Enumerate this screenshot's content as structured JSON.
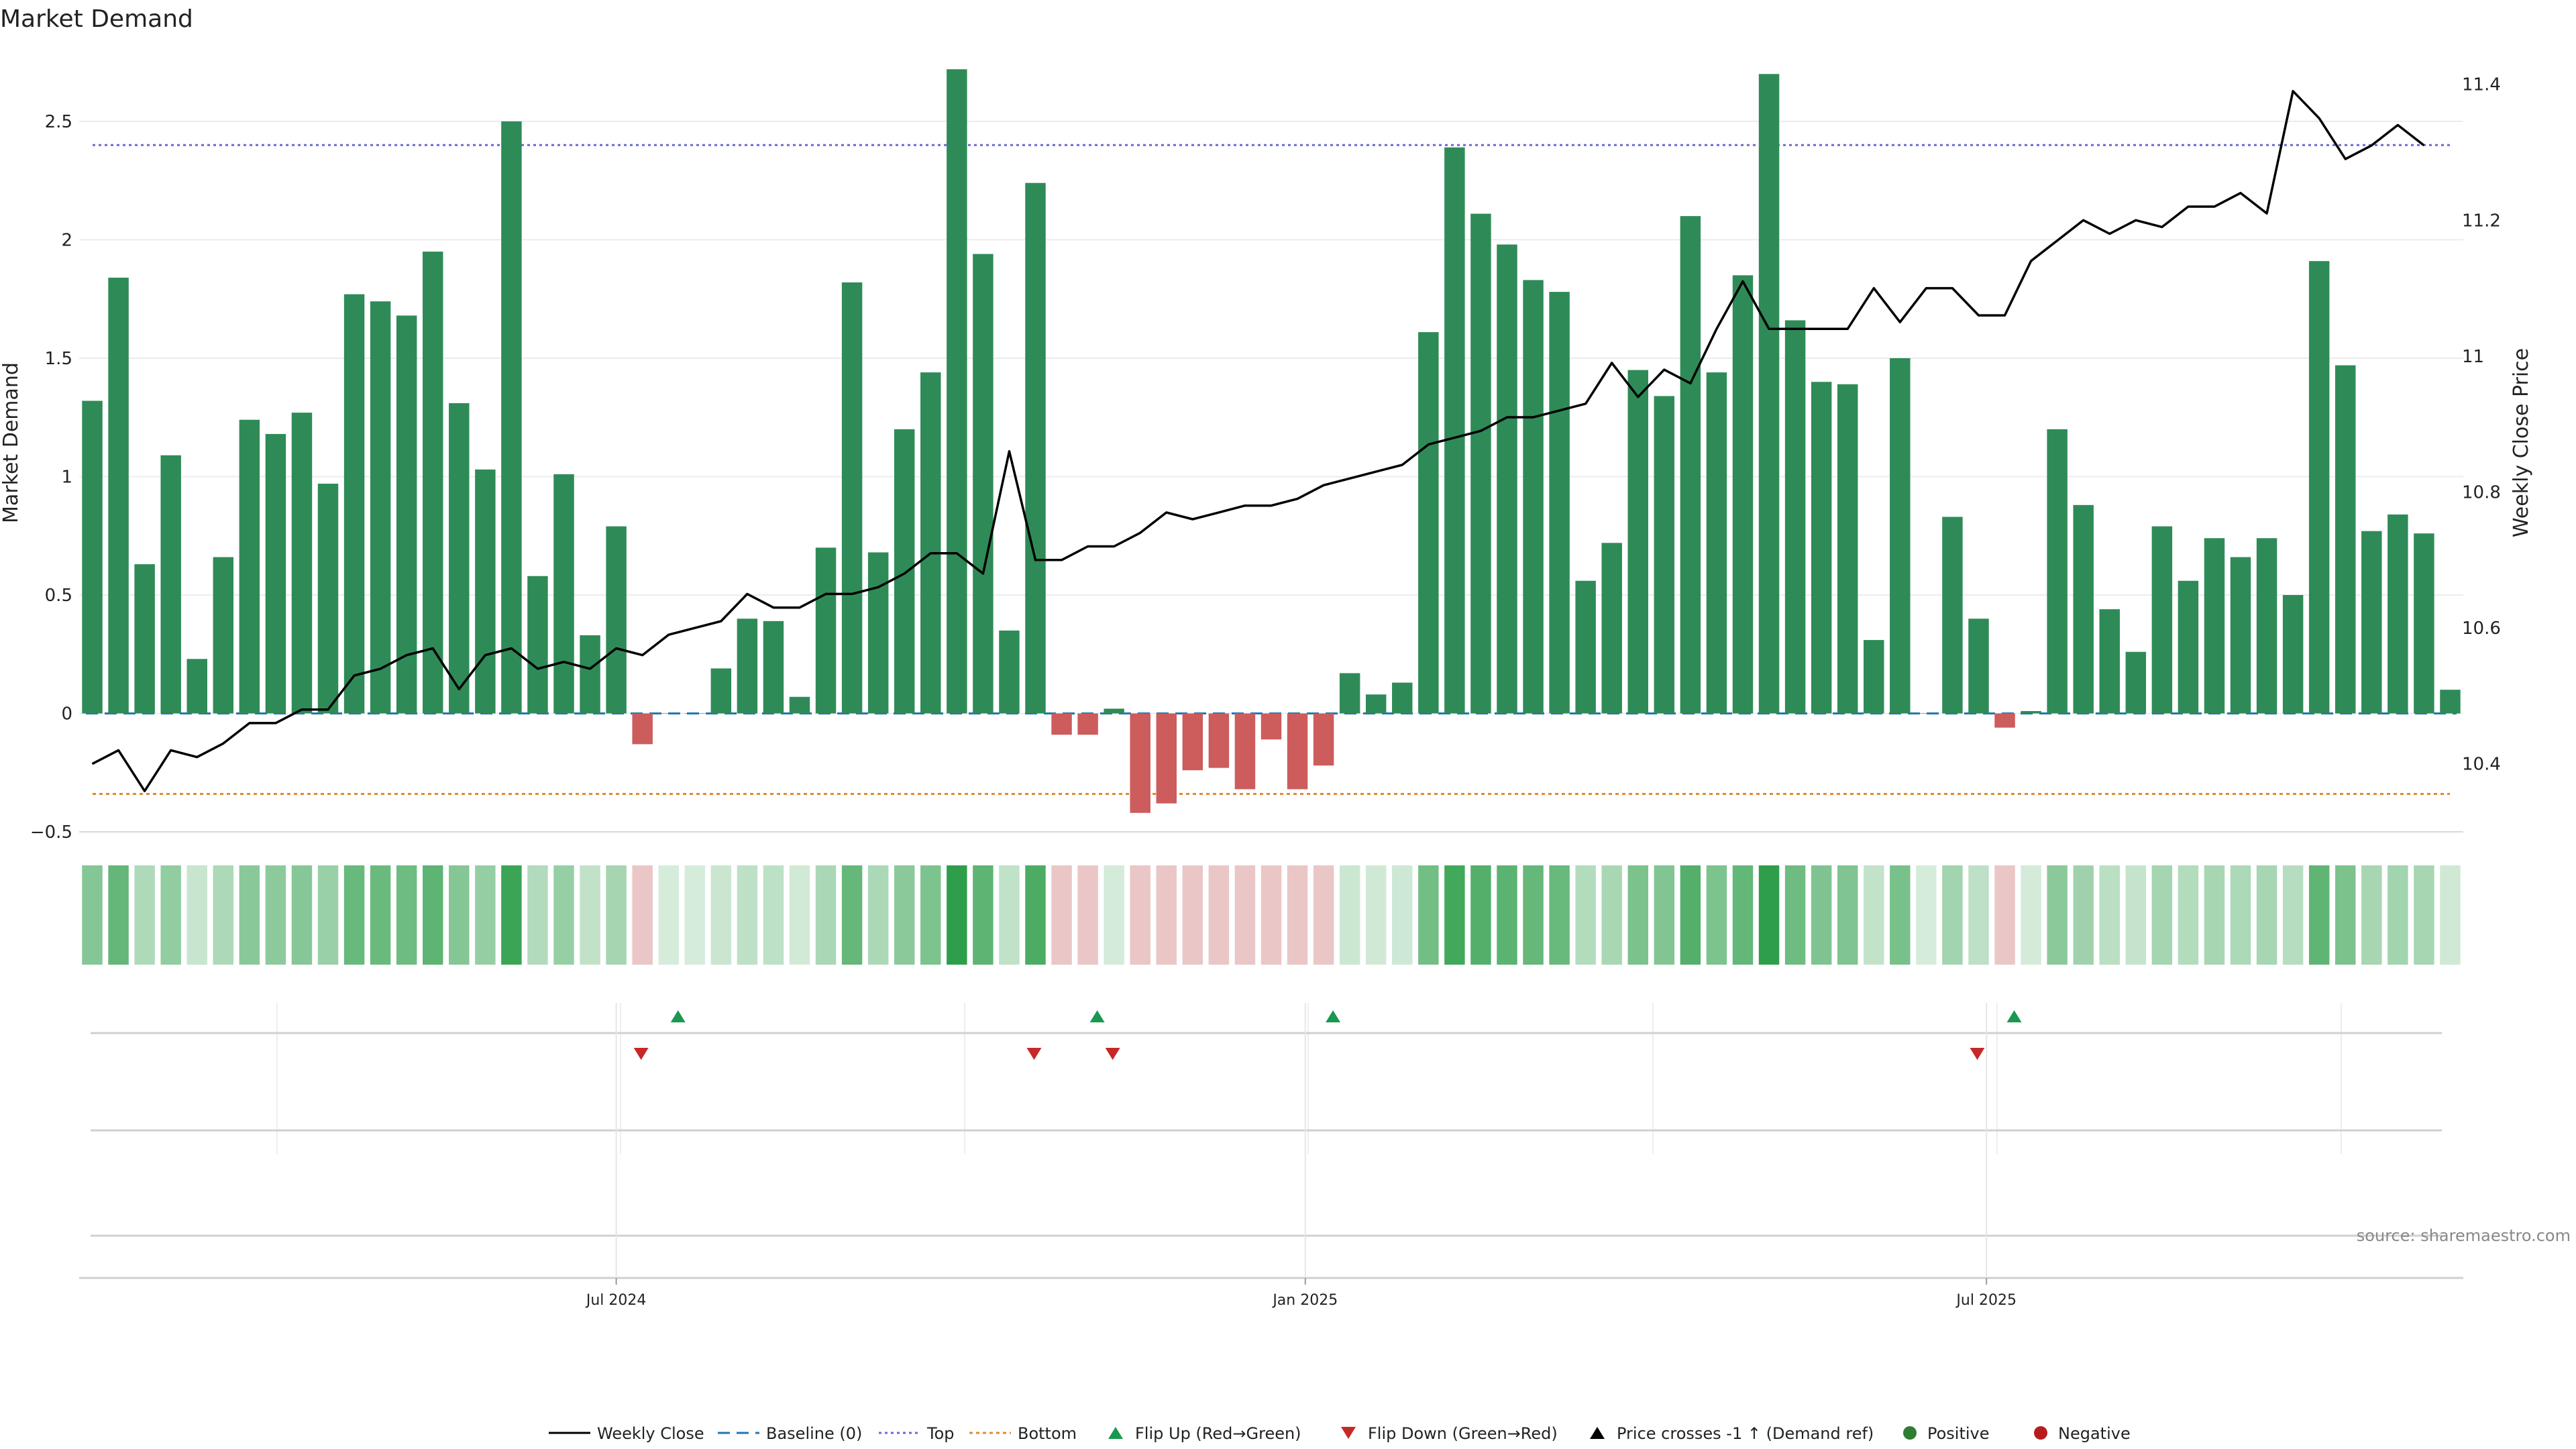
{
  "chart_data": {
    "type": "bar",
    "title": "Market Demand",
    "ylabel_left": "Market Demand",
    "ylabel_right": "Weekly Close Price",
    "ylim_left": [
      -0.5,
      2.8
    ],
    "ylim_right": [
      10.3,
      11.45
    ],
    "y_ticks_left": [
      -0.5,
      0,
      0.5,
      1,
      1.5,
      2,
      2.5
    ],
    "y_tick_labels_left": [
      "−0.5",
      "0",
      "0.5",
      "1",
      "1.5",
      "2",
      "2.5"
    ],
    "y_ticks_right": [
      10.4,
      10.6,
      10.8,
      11,
      11.2,
      11.4
    ],
    "y_tick_labels_right": [
      "10.4",
      "10.6",
      "10.8",
      "11",
      "11.2",
      "11.4"
    ],
    "x_tick_labels": [
      "Jul 2024",
      "Jan 2025",
      "Jul 2025"
    ],
    "x_tick_positions": [
      20.5,
      46.8,
      72.8
    ],
    "top_line": 2.4,
    "bottom_line": -0.34,
    "grid": true,
    "demand": [
      1.32,
      1.84,
      0.63,
      1.09,
      0.23,
      0.66,
      1.24,
      1.18,
      1.27,
      0.97,
      1.77,
      1.74,
      1.68,
      1.95,
      1.31,
      1.03,
      2.5,
      0.58,
      1.01,
      0.33,
      0.79,
      -0.13,
      0.0,
      0.0,
      0.19,
      0.4,
      0.39,
      0.07,
      0.7,
      1.82,
      0.68,
      1.2,
      1.44,
      2.72,
      1.94,
      0.35,
      2.24,
      -0.09,
      -0.09,
      0.02,
      -0.42,
      -0.38,
      -0.24,
      -0.23,
      -0.32,
      -0.11,
      -0.32,
      -0.22,
      0.17,
      0.08,
      0.13,
      1.61,
      2.39,
      2.11,
      1.98,
      1.83,
      1.78,
      0.56,
      0.72,
      1.45,
      1.34,
      2.1,
      1.44,
      1.85,
      2.7,
      1.66,
      1.4,
      1.39,
      0.31,
      1.5,
      0.0,
      0.83,
      0.4,
      -0.06,
      0.01,
      1.2,
      0.88,
      0.44,
      0.26,
      0.79,
      0.56,
      0.74,
      0.66,
      0.74,
      0.5,
      1.91,
      1.47,
      0.77,
      0.84,
      0.76,
      0.1
    ],
    "weekly_close": [
      10.4,
      10.42,
      10.36,
      10.42,
      10.41,
      10.43,
      10.46,
      10.46,
      10.48,
      10.48,
      10.53,
      10.54,
      10.56,
      10.57,
      10.51,
      10.56,
      10.57,
      10.54,
      10.55,
      10.54,
      10.57,
      10.56,
      10.59,
      10.6,
      10.61,
      10.65,
      10.63,
      10.63,
      10.65,
      10.65,
      10.66,
      10.68,
      10.71,
      10.71,
      10.68,
      10.86,
      10.7,
      10.7,
      10.72,
      10.72,
      10.74,
      10.77,
      10.76,
      10.77,
      10.78,
      10.78,
      10.79,
      10.81,
      10.82,
      10.83,
      10.84,
      10.87,
      10.88,
      10.89,
      10.91,
      10.91,
      10.92,
      10.93,
      10.99,
      10.94,
      10.98,
      10.96,
      11.04,
      11.11,
      11.04,
      11.04,
      11.04,
      11.04,
      11.1,
      11.05,
      11.1,
      11.1,
      11.06,
      11.06,
      11.14,
      11.17,
      11.2,
      11.18,
      11.2,
      11.19,
      11.22,
      11.22,
      11.24,
      11.21,
      11.39,
      11.35,
      11.29,
      11.31,
      11.34,
      11.31
    ],
    "price_x_offset": 0.5,
    "flip_up_indices": [
      22,
      38,
      47,
      73
    ],
    "flip_down_indices": [
      21,
      36,
      39,
      72
    ],
    "legend": [
      "Weekly Close",
      "Baseline (0)",
      "Top",
      "Bottom",
      "Flip Up (Red→Green)",
      "Flip Down (Green→Red)",
      "Price crosses -1 ↑ (Demand ref)",
      "Positive",
      "Negative"
    ],
    "legend_placement": "bottom-center",
    "colors": {
      "positive": "#2e8b57",
      "negative": "#cd5c5c",
      "line": "#000000",
      "baseline": "#1f77b4",
      "top": "#6a6ad0",
      "bottom": "#e08a2e",
      "flip_up": "#1a9850",
      "flip_down": "#c62828",
      "legend_positive_dot": "#2e7d32",
      "legend_negative_dot": "#b71c1c",
      "heat_red": "#ebc6c6"
    }
  },
  "source_text": "source: sharemaestro.com"
}
